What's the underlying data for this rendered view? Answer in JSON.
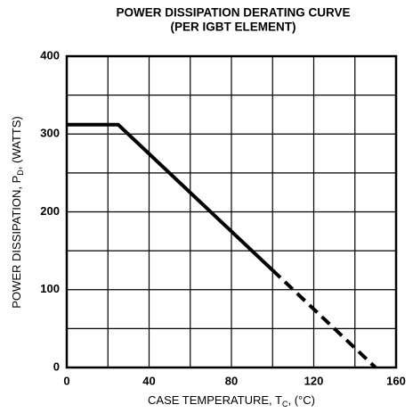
{
  "chart_data": {
    "type": "line",
    "title": [
      "POWER DISSIPATION DERATING CURVE",
      "(PER IGBT ELEMENT)"
    ],
    "xlabel": [
      "CASE TEMPERATURE, T",
      "C",
      ", (°C)"
    ],
    "ylabel": [
      "POWER DISSIPATION, P",
      "D",
      ", (WATTS)"
    ],
    "xlim": [
      0,
      160
    ],
    "xticks": [
      0,
      40,
      80,
      120,
      160
    ],
    "xminor": [
      20,
      60,
      100,
      140
    ],
    "ylim": [
      0,
      400
    ],
    "yticks": [
      0,
      100,
      200,
      300,
      400
    ],
    "yminor": [
      50,
      150,
      250,
      350
    ],
    "grid": true,
    "series": [
      {
        "style": "solid",
        "color": "#000000",
        "x": [
          0,
          25,
          100
        ],
        "values": [
          312,
          312,
          125
        ]
      },
      {
        "style": "dashed",
        "color": "#000000",
        "x": [
          100,
          150
        ],
        "values": [
          125,
          0
        ]
      }
    ]
  }
}
